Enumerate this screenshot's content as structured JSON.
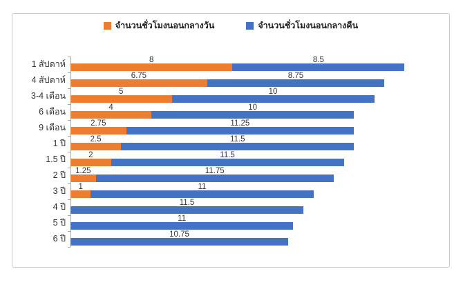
{
  "chart_data": {
    "type": "bar",
    "orientation": "horizontal",
    "stacked": true,
    "title": "",
    "xlabel": "",
    "ylabel": "",
    "xlim": [
      0,
      16.5
    ],
    "grid": false,
    "data_labels": true,
    "legend_position": "top",
    "categories": [
      "1 สัปดาห์",
      "4 สัปดาห์",
      "3-4 เดือน",
      "6 เดือน",
      "9 เดือน",
      "1 ปี",
      "1.5 ปี",
      "2 ปี",
      "3 ปี",
      "4 ปี",
      "5 ปี",
      "6 ปี"
    ],
    "series": [
      {
        "name": "จำนวนชั่วโมงนอนกลางวัน",
        "color": "#ED7D31",
        "values": [
          8,
          6.75,
          5,
          4,
          2.75,
          2.5,
          2,
          1.25,
          1,
          0,
          0,
          0
        ]
      },
      {
        "name": "จำนวนชั่วโมงนอนกลางคืน",
        "color": "#4472C4",
        "values": [
          8.5,
          8.75,
          10,
          10,
          11.25,
          11.5,
          11.5,
          11.75,
          11,
          11.5,
          11,
          10.75
        ]
      }
    ],
    "totals": [
      16.5,
      15.5,
      15,
      14,
      14,
      14,
      13.5,
      13,
      12,
      11.5,
      11,
      10.75
    ]
  },
  "colors": {
    "day_series": "#ED7D31",
    "night_series": "#4472C4",
    "axis": "#a6a6a6",
    "frame_border": "#c9c9c9",
    "text": "#333333"
  }
}
